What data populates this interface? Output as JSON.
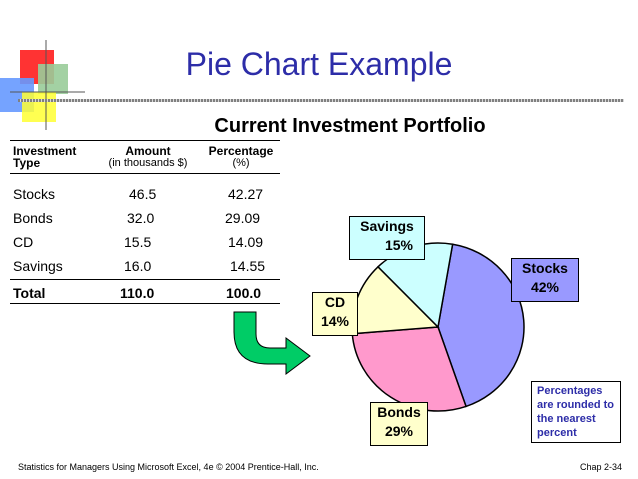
{
  "slide": {
    "title": "Pie Chart Example",
    "footer_left": "Statistics for Managers Using Microsoft Excel, 4e © 2004 Prentice-Hall, Inc.",
    "footer_right": "Chap 2-34"
  },
  "table": {
    "headers": {
      "type_line1": "Investment",
      "type_line2": "Type",
      "amount_line1": "Amount",
      "amount_line2": "(in thousands $)",
      "pct_line1": "Percentage",
      "pct_line2": "(%)"
    },
    "rows": [
      {
        "type": "Stocks",
        "amount": "46.5",
        "pct": "42.27"
      },
      {
        "type": "Bonds",
        "amount": "32.0",
        "pct": "29.09"
      },
      {
        "type": "CD",
        "amount": "15.5",
        "pct": "14.09"
      },
      {
        "type": "Savings",
        "amount": "16.0",
        "pct": "14.55"
      }
    ],
    "total": {
      "type": "Total",
      "amount": "110.0",
      "pct": "100.0"
    }
  },
  "chart_data": {
    "type": "pie",
    "title": "Current Investment Portfolio",
    "slices": [
      {
        "name": "Stocks",
        "value": 42,
        "label": "42%",
        "color": "#9999ff"
      },
      {
        "name": "Bonds",
        "value": 29,
        "label": "29%",
        "color": "#ff99cc"
      },
      {
        "name": "CD",
        "value": 14,
        "label": "14%",
        "color": "#ffffcc"
      },
      {
        "name": "Savings",
        "value": 15,
        "label": "15%",
        "color": "#ccffff"
      }
    ],
    "note": "Percentages are rounded to the nearest percent"
  },
  "colors": {
    "title": "#2d2da8",
    "arrow": "#00cc66",
    "label_bg": "#ffffcc"
  }
}
